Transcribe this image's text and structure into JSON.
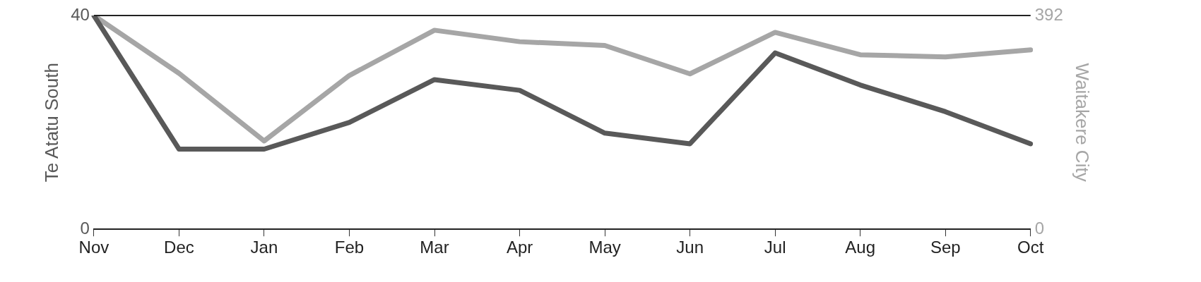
{
  "chart_data": {
    "type": "line",
    "ylabel": "Te Atatu South",
    "y2label": "Waitakere City",
    "categories": [
      "Nov",
      "Dec",
      "Jan",
      "Feb",
      "Mar",
      "Apr",
      "May",
      "Jun",
      "Jul",
      "Aug",
      "Sep",
      "Oct"
    ],
    "series": [
      {
        "color": "#595959",
        "values": [
          40,
          15,
          15,
          20,
          28,
          26,
          18,
          16,
          33,
          27,
          22,
          16
        ]
      },
      {
        "color": "#a6a6a6",
        "axis": "y2",
        "values": [
          392,
          286,
          162,
          282,
          365,
          344,
          337,
          285,
          361,
          320,
          316,
          329
        ]
      }
    ],
    "ylim": [
      0,
      40
    ],
    "yticks": [
      0,
      40
    ],
    "y2lim": [
      0,
      392
    ],
    "y2ticks": [
      0,
      392
    ],
    "grid": false,
    "legend": false,
    "marker": "none",
    "line_style": "solid"
  }
}
